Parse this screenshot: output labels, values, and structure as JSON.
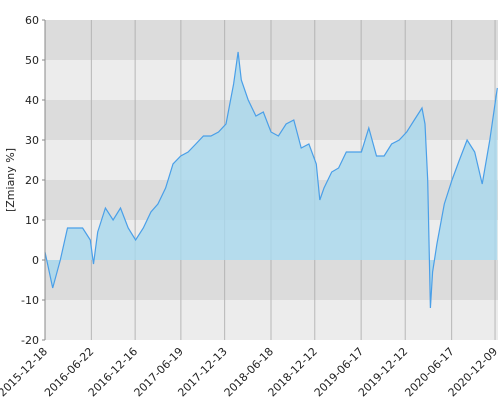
{
  "chart_data": {
    "type": "area",
    "y_label": "[Zmiany %]",
    "x": [
      "2015-12-18",
      "2016-01-18",
      "2016-02-18",
      "2016-03-18",
      "2016-04-18",
      "2016-05-18",
      "2016-06-18",
      "2016-07-01",
      "2016-07-18",
      "2016-08-18",
      "2016-09-18",
      "2016-10-18",
      "2016-11-18",
      "2016-12-18",
      "2017-01-18",
      "2017-02-18",
      "2017-03-18",
      "2017-04-18",
      "2017-05-18",
      "2017-06-18",
      "2017-07-18",
      "2017-08-18",
      "2017-09-18",
      "2017-10-18",
      "2017-11-18",
      "2017-12-18",
      "2018-01-18",
      "2018-02-05",
      "2018-02-18",
      "2018-03-18",
      "2018-04-18",
      "2018-05-18",
      "2018-06-18",
      "2018-07-18",
      "2018-08-18",
      "2018-09-18",
      "2018-10-18",
      "2018-11-18",
      "2018-12-18",
      "2019-01-01",
      "2019-01-18",
      "2019-02-18",
      "2019-03-18",
      "2019-04-18",
      "2019-05-18",
      "2019-06-18",
      "2019-07-18",
      "2019-08-18",
      "2019-09-18",
      "2019-10-18",
      "2019-11-18",
      "2019-12-18",
      "2020-01-18",
      "2020-02-18",
      "2020-03-01",
      "2020-03-12",
      "2020-03-23",
      "2020-04-01",
      "2020-04-18",
      "2020-05-18",
      "2020-06-18",
      "2020-07-18",
      "2020-08-18",
      "2020-09-18",
      "2020-10-18",
      "2020-11-18",
      "2020-12-18"
    ],
    "values": [
      2,
      -7,
      0,
      8,
      8,
      8,
      5,
      -1,
      7,
      13,
      10,
      13,
      8,
      5,
      8,
      12,
      14,
      18,
      24,
      26,
      27,
      29,
      31,
      31,
      32,
      34,
      44,
      52,
      45,
      40,
      36,
      37,
      32,
      31,
      34,
      35,
      28,
      29,
      24,
      15,
      18,
      22,
      23,
      27,
      27,
      27,
      33,
      26,
      26,
      29,
      30,
      32,
      35,
      38,
      34,
      20,
      -12,
      -3,
      4,
      14,
      20,
      25,
      30,
      27,
      19,
      30,
      43
    ],
    "line_color": "#4a9fe8",
    "fill_color": "#a8d8ee",
    "xlim": [
      "2015-12-18",
      "2020-12-21"
    ],
    "xticks": [
      "2015-12-18",
      "2016-06-22",
      "2016-12-16",
      "2017-06-19",
      "2017-12-13",
      "2018-06-18",
      "2018-12-12",
      "2019-06-17",
      "2019-12-12",
      "2020-06-17",
      "2020-12-09"
    ],
    "ylim": [
      -20,
      60
    ],
    "yticks": [
      -20,
      -10,
      0,
      10,
      20,
      30,
      40,
      50,
      60
    ],
    "grid": true
  }
}
